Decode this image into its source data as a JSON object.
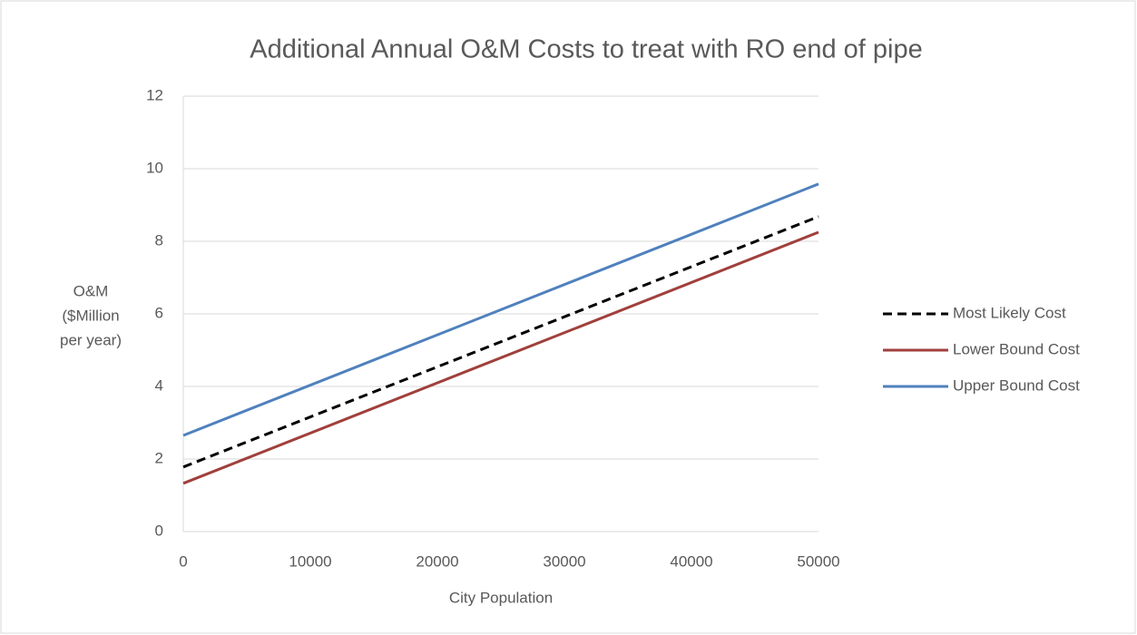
{
  "chart_data": {
    "type": "line",
    "title": "Additional Annual O&M Costs to treat with RO end of pipe",
    "x_label": "City Population",
    "y_label": [
      "O&M",
      "($Million",
      "per year)"
    ],
    "x": [
      0,
      50000
    ],
    "series": [
      {
        "name": "Most Likely Cost",
        "color": "#000000",
        "dash": true,
        "values": [
          1.78,
          8.68
        ]
      },
      {
        "name": "Lower Bound Cost",
        "color": "#a0403c",
        "dash": false,
        "values": [
          1.33,
          8.25
        ]
      },
      {
        "name": "Upper Bound Cost",
        "color": "#4f81bd",
        "dash": false,
        "values": [
          2.65,
          9.58
        ]
      }
    ],
    "xlim": [
      0,
      50000
    ],
    "xticks": [
      0,
      10000,
      20000,
      30000,
      40000,
      50000
    ],
    "ylim": [
      0,
      12
    ],
    "yticks": [
      0,
      2,
      4,
      6,
      8,
      10,
      12
    ],
    "grid": true,
    "legend": "right"
  }
}
